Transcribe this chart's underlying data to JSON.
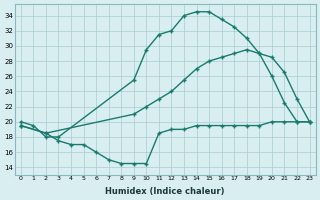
{
  "line1_x": [
    0,
    1,
    2,
    3,
    9,
    10,
    11,
    12,
    13,
    14,
    15,
    16,
    17,
    18,
    19,
    20,
    21,
    22,
    23
  ],
  "line1_y": [
    20,
    19.5,
    18,
    18,
    25.5,
    29.5,
    31.5,
    32,
    34,
    34.5,
    34.5,
    33.5,
    32.5,
    31,
    29,
    26,
    22.5,
    20,
    20
  ],
  "line2_x": [
    0,
    2,
    3,
    4,
    5,
    6,
    7,
    8,
    9,
    10,
    11,
    12,
    13,
    14,
    15,
    16,
    17,
    18,
    19,
    20,
    21,
    22,
    23
  ],
  "line2_y": [
    19.5,
    18.5,
    17.5,
    17,
    17,
    16,
    15,
    14.5,
    14.5,
    14.5,
    18.5,
    19,
    19,
    19.5,
    19.5,
    19.5,
    19.5,
    19.5,
    19.5,
    20,
    20,
    20,
    20
  ],
  "line3_x": [
    0,
    2,
    9,
    10,
    11,
    12,
    13,
    14,
    15,
    16,
    17,
    18,
    19,
    20,
    21,
    22,
    23
  ],
  "line3_y": [
    19.5,
    18.5,
    21,
    22,
    23,
    24,
    25.5,
    27,
    28,
    28.5,
    29,
    29.5,
    29,
    28.5,
    26.5,
    23,
    20
  ],
  "color": "#1a7a6e",
  "bg_color": "#d8eef0",
  "grid_color": "#aaccd0",
  "xlim": [
    -0.5,
    23.5
  ],
  "ylim": [
    13,
    35.5
  ],
  "yticks": [
    14,
    16,
    18,
    20,
    22,
    24,
    26,
    28,
    30,
    32,
    34
  ],
  "xticks": [
    0,
    1,
    2,
    3,
    4,
    5,
    6,
    7,
    8,
    9,
    10,
    11,
    12,
    13,
    14,
    15,
    16,
    17,
    18,
    19,
    20,
    21,
    22,
    23
  ],
  "xlabel": "Humidex (Indice chaleur)"
}
